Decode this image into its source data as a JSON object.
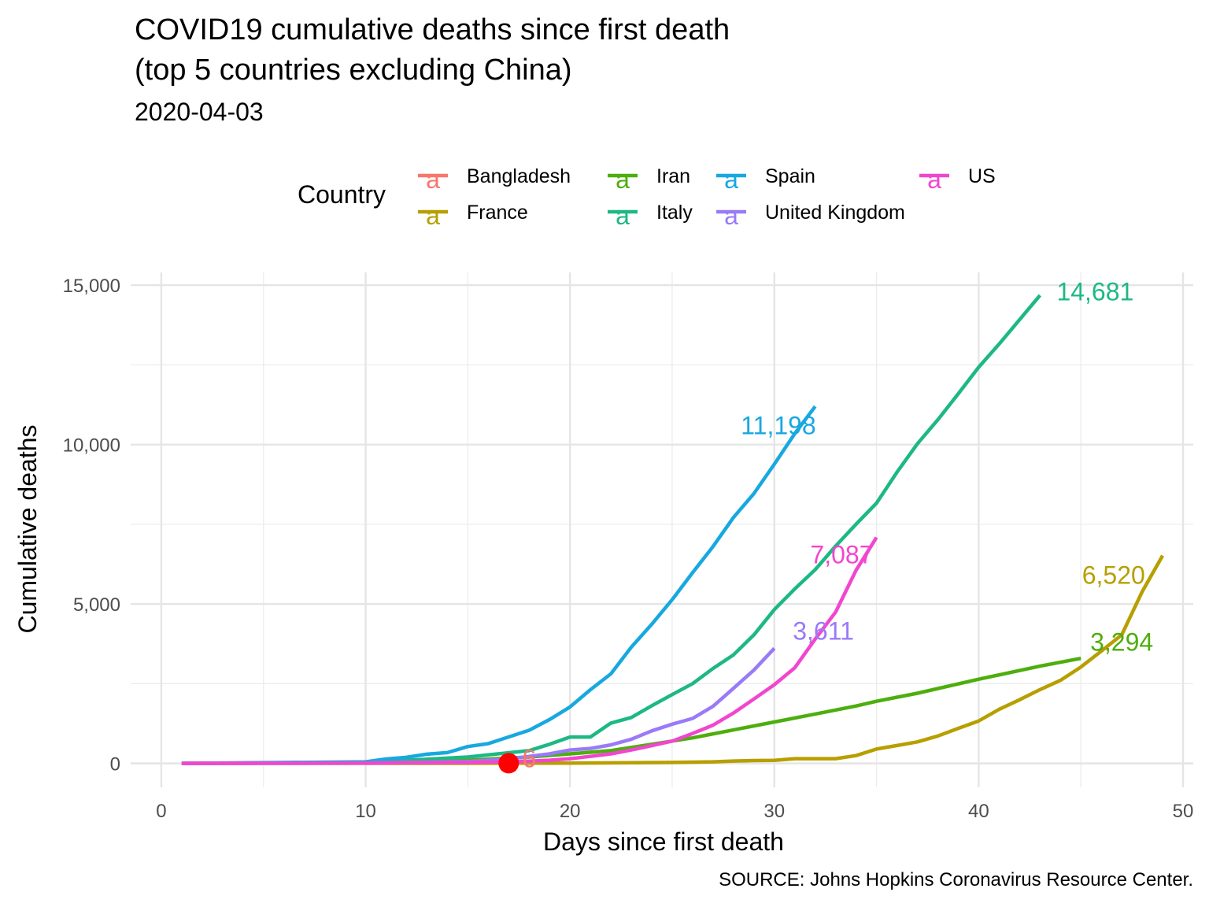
{
  "title_line1": "COVID19 cumulative deaths since first death",
  "title_line2": "(top 5 countries excluding China)",
  "subtitle": "2020-04-03",
  "caption": "SOURCE: Johns Hopkins Coronavirus Resource Center.",
  "legend": {
    "title": "Country",
    "entries": [
      {
        "name": "Bangladesh",
        "color": "#F8766D",
        "glyph": "a"
      },
      {
        "name": "France",
        "color": "#B79F00",
        "glyph": "a"
      },
      {
        "name": "Iran",
        "color": "#4DAE0D",
        "glyph": "a"
      },
      {
        "name": "Italy",
        "color": "#1DB883",
        "glyph": "a"
      },
      {
        "name": "Spain",
        "color": "#18A8E0",
        "glyph": "a"
      },
      {
        "name": "United Kingdom",
        "color": "#9A7AF8",
        "glyph": "a"
      },
      {
        "name": "US",
        "color": "#F146CF",
        "glyph": "a"
      }
    ]
  },
  "chart_data": {
    "type": "line",
    "xlabel": "Days since first death",
    "ylabel": "Cumulative deaths",
    "xlim": [
      -1.5,
      50.5
    ],
    "ylim": [
      -750,
      15400
    ],
    "x_ticks": [
      0,
      10,
      20,
      30,
      40,
      50
    ],
    "x_tick_labels": [
      "0",
      "10",
      "20",
      "30",
      "40",
      "50"
    ],
    "y_ticks": [
      0,
      5000,
      10000,
      15000
    ],
    "y_tick_labels": [
      "0",
      "5,000",
      "10,000",
      "15,000"
    ],
    "grid": true,
    "legend_position": "top",
    "series": [
      {
        "name": "France",
        "color": "#B79F00",
        "x": [
          1,
          5,
          10,
          15,
          20,
          25,
          27,
          28,
          29,
          30,
          31,
          32,
          33,
          34,
          35,
          36,
          37,
          38,
          39,
          40,
          41,
          42,
          43,
          44,
          45,
          46,
          47,
          48,
          49
        ],
        "y": [
          1,
          2,
          2,
          2,
          7,
          30,
          50,
          75,
          90,
          95,
          148,
          150,
          150,
          244,
          450,
          562,
          674,
          860,
          1100,
          1331,
          1696,
          1995,
          2314,
          2606,
          3024,
          3523,
          4032,
          5387,
          6520
        ],
        "end_label": "6,520",
        "label_x": 46.6,
        "label_y": 5900
      },
      {
        "name": "Iran",
        "color": "#4DAE0D",
        "x": [
          1,
          10,
          15,
          18,
          20,
          22,
          24,
          26,
          28,
          30,
          32,
          34,
          35,
          37,
          40,
          43,
          45
        ],
        "y": [
          2,
          26,
          100,
          200,
          300,
          400,
          600,
          800,
          1050,
          1300,
          1550,
          1800,
          1950,
          2200,
          2640,
          3050,
          3294
        ],
        "end_label": "3,294",
        "label_x": 47.0,
        "label_y": 3800
      },
      {
        "name": "Italy",
        "color": "#1DB883",
        "x": [
          1,
          10,
          15,
          18,
          19,
          20,
          21,
          22,
          23,
          24,
          25,
          26,
          27,
          28,
          29,
          30,
          31,
          32,
          33,
          34,
          35,
          36,
          37,
          38,
          39,
          40,
          41,
          42,
          43
        ],
        "y": [
          1,
          30,
          200,
          400,
          600,
          827,
          827,
          1266,
          1441,
          1809,
          2158,
          2503,
          2978,
          3405,
          4032,
          4825,
          5476,
          6077,
          6820,
          7503,
          8165,
          9134,
          10023,
          10779,
          11591,
          12428,
          13155,
          13915,
          14681
        ],
        "end_label": "14,681",
        "label_x": 45.7,
        "label_y": 14800
      },
      {
        "name": "Spain",
        "color": "#18A8E0",
        "x": [
          1,
          10,
          11,
          12,
          13,
          14,
          15,
          16,
          17,
          18,
          19,
          20,
          21,
          22,
          23,
          24,
          25,
          26,
          27,
          28,
          29,
          30,
          31,
          32
        ],
        "y": [
          1,
          50,
          140,
          190,
          290,
          340,
          530,
          620,
          830,
          1040,
          1375,
          1772,
          2311,
          2808,
          3647,
          4365,
          5138,
          5982,
          6803,
          7716,
          8464,
          9387,
          10348,
          11198
        ],
        "end_label": "11,198",
        "label_x": 30.2,
        "label_y": 10600
      },
      {
        "name": "United Kingdom",
        "color": "#9A7AF8",
        "x": [
          1,
          10,
          15,
          17,
          18,
          19,
          20,
          21,
          22,
          23,
          24,
          25,
          26,
          27,
          28,
          29,
          30
        ],
        "y": [
          1,
          10,
          60,
          140,
          220,
          300,
          420,
          470,
          580,
          760,
          1020,
          1230,
          1410,
          1790,
          2357,
          2926,
          3611
        ],
        "end_label": "3,611",
        "label_x": 32.4,
        "label_y": 4150
      },
      {
        "name": "US",
        "color": "#F146CF",
        "x": [
          1,
          10,
          15,
          17,
          18,
          19,
          20,
          21,
          22,
          23,
          24,
          25,
          26,
          27,
          28,
          29,
          30,
          31,
          32,
          33,
          34,
          35
        ],
        "y": [
          1,
          10,
          30,
          50,
          70,
          100,
          150,
          220,
          300,
          420,
          560,
          700,
          940,
          1200,
          1580,
          2020,
          2470,
          3000,
          3900,
          4750,
          6058,
          7087
        ],
        "end_label": "7,087",
        "label_x": 33.3,
        "label_y": 6550
      },
      {
        "name": "Bangladesh",
        "color": "#F8766D",
        "x": [
          17
        ],
        "y": [
          6
        ],
        "end_label": "6",
        "label_x": 18.0,
        "label_y": 150
      }
    ],
    "highlight_point": {
      "x": 17,
      "y": 6,
      "color": "#FF0000"
    }
  }
}
